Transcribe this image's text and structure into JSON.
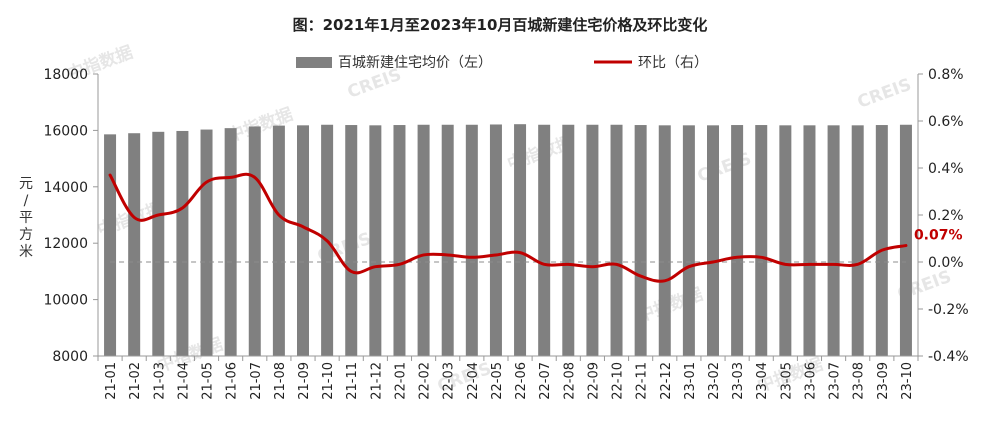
{
  "chart_data": {
    "type": "bar+line",
    "title": "图：2021年1月至2023年10月百城新建住宅价格及环比变化",
    "categories": [
      "21-01",
      "21-02",
      "21-03",
      "21-04",
      "21-05",
      "21-06",
      "21-07",
      "21-08",
      "21-09",
      "21-10",
      "21-11",
      "21-12",
      "22-01",
      "22-02",
      "22-03",
      "22-04",
      "22-05",
      "22-06",
      "22-07",
      "22-08",
      "22-09",
      "22-10",
      "22-11",
      "22-12",
      "23-01",
      "23-02",
      "23-03",
      "23-04",
      "23-05",
      "23-06",
      "23-07",
      "23-08",
      "23-09",
      "23-10"
    ],
    "series": [
      {
        "name": "百城新建住宅均价（左）",
        "kind": "bar",
        "axis": "left",
        "color": "#808080",
        "values": [
          15860,
          15900,
          15950,
          15980,
          16030,
          16080,
          16140,
          16170,
          16180,
          16200,
          16190,
          16180,
          16190,
          16200,
          16200,
          16200,
          16210,
          16220,
          16200,
          16200,
          16200,
          16200,
          16190,
          16180,
          16180,
          16180,
          16190,
          16190,
          16180,
          16180,
          16180,
          16180,
          16190,
          16200
        ]
      },
      {
        "name": "环比（右）",
        "kind": "line",
        "axis": "right",
        "color": "#c00000",
        "values": [
          0.37,
          0.19,
          0.2,
          0.23,
          0.34,
          0.36,
          0.36,
          0.2,
          0.15,
          0.09,
          -0.04,
          -0.02,
          -0.01,
          0.03,
          0.03,
          0.02,
          0.03,
          0.04,
          -0.01,
          -0.01,
          -0.02,
          -0.01,
          -0.06,
          -0.08,
          -0.02,
          0.0,
          0.02,
          0.02,
          -0.01,
          -0.01,
          -0.01,
          -0.01,
          0.05,
          0.07
        ]
      }
    ],
    "y_left": {
      "label": "元/平方米",
      "label_chars": [
        "元",
        "/",
        "平",
        "方",
        "米"
      ],
      "min": 8000,
      "max": 18000,
      "ticks": [
        "8000",
        "10000",
        "12000",
        "14000",
        "16000",
        "18000"
      ]
    },
    "y_right": {
      "min": -0.4,
      "max": 0.8,
      "ticks": [
        "-0.4%",
        "-0.2%",
        "0.0%",
        "0.2%",
        "0.4%",
        "0.6%",
        "0.8%"
      ]
    },
    "reference_line": {
      "axis": "right",
      "value": 0.0,
      "style": "dashed"
    },
    "annotation": {
      "text": "0.07%",
      "index": 33
    },
    "legend": {
      "position": "top"
    },
    "grid": false,
    "watermark": [
      "中指数据",
      "CREIS"
    ]
  }
}
